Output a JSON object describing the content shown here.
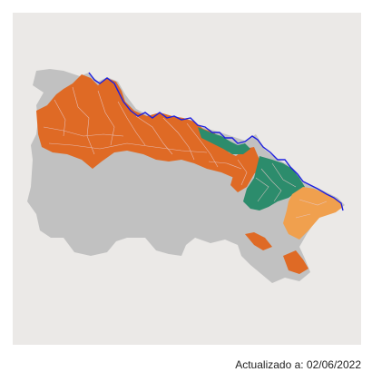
{
  "updated_label": "Actualizado a: 02/06/2022",
  "colors": {
    "panel_background": "#ebe9e7",
    "no_data": "#c1c1c1",
    "dark_orange": "#df6a25",
    "light_orange": "#f0a04e",
    "green": "#2c8c6c",
    "river": "#1d1fe0",
    "municipality_border": "#e8c8c8"
  }
}
